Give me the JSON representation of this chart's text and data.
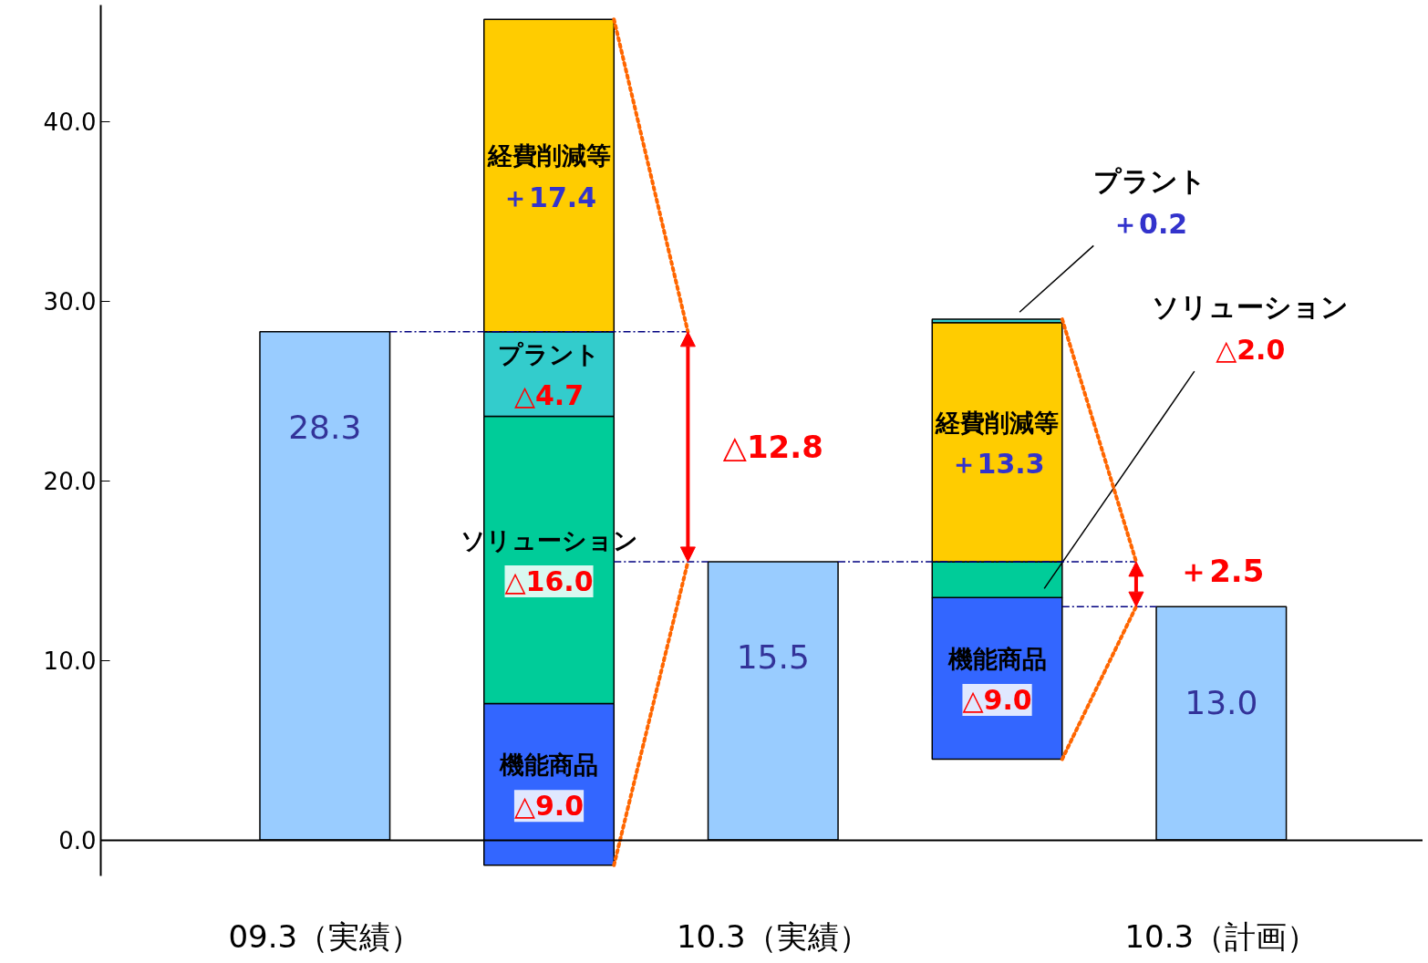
{
  "chart_data": {
    "type": "bar",
    "categories": [
      "09.3（実績）",
      null,
      "10.3（実績）",
      null,
      "10.3（計画）"
    ],
    "ylim": [
      -2,
      46.5
    ],
    "yticks": [
      {
        "value": 0,
        "label": "0.0"
      },
      {
        "value": 10,
        "label": "10.0"
      },
      {
        "value": 20,
        "label": "20.0"
      },
      {
        "value": 30,
        "label": "30.0"
      },
      {
        "value": 40,
        "label": "40.0"
      }
    ],
    "grid": false,
    "annotations": [
      "△12.8",
      {
        "text": "＋2.5",
        "y": 13.0
      }
    ],
    "series": [
      {
        "color": "#99ccff",
        "values": [
          28.3,
          null,
          15.5,
          null,
          13.0
        ],
        "value_labels": [
          "28.3",
          null,
          "15.5",
          null,
          "13.0"
        ]
      },
      {
        "name": "機能商品",
        "color": "#3366ff",
        "values": [
          null,
          -9.0,
          null,
          -9.0,
          null
        ],
        "base": [
          null,
          7.6,
          null,
          13.5,
          null
        ],
        "value_labels": [
          null,
          "△9.0",
          null,
          "△9.0",
          null
        ]
      },
      {
        "name": "ソリューション",
        "color": "#00cc99",
        "values": [
          null,
          -16.0,
          null,
          -2.0,
          null
        ],
        "base": [
          null,
          23.6,
          null,
          15.5,
          null
        ],
        "value_labels": [
          null,
          "△16.0",
          null,
          "△2.0",
          null
        ]
      },
      {
        "name": "プラント",
        "color": "#33cccc",
        "values": [
          null,
          -4.7,
          null,
          0.2,
          null
        ],
        "base": [
          null,
          28.3,
          null,
          28.8,
          null
        ],
        "value_labels": [
          null,
          "△4.7",
          null,
          "＋0.2",
          null
        ]
      },
      {
        "name": "経費削減等",
        "color": "#ffcc00",
        "values": [
          null,
          17.4,
          null,
          13.3,
          null
        ],
        "base": [
          null,
          28.3,
          null,
          15.5,
          null
        ],
        "value_labels": [
          null,
          "＋17.4",
          null,
          "＋13.3",
          null
        ]
      }
    ]
  }
}
